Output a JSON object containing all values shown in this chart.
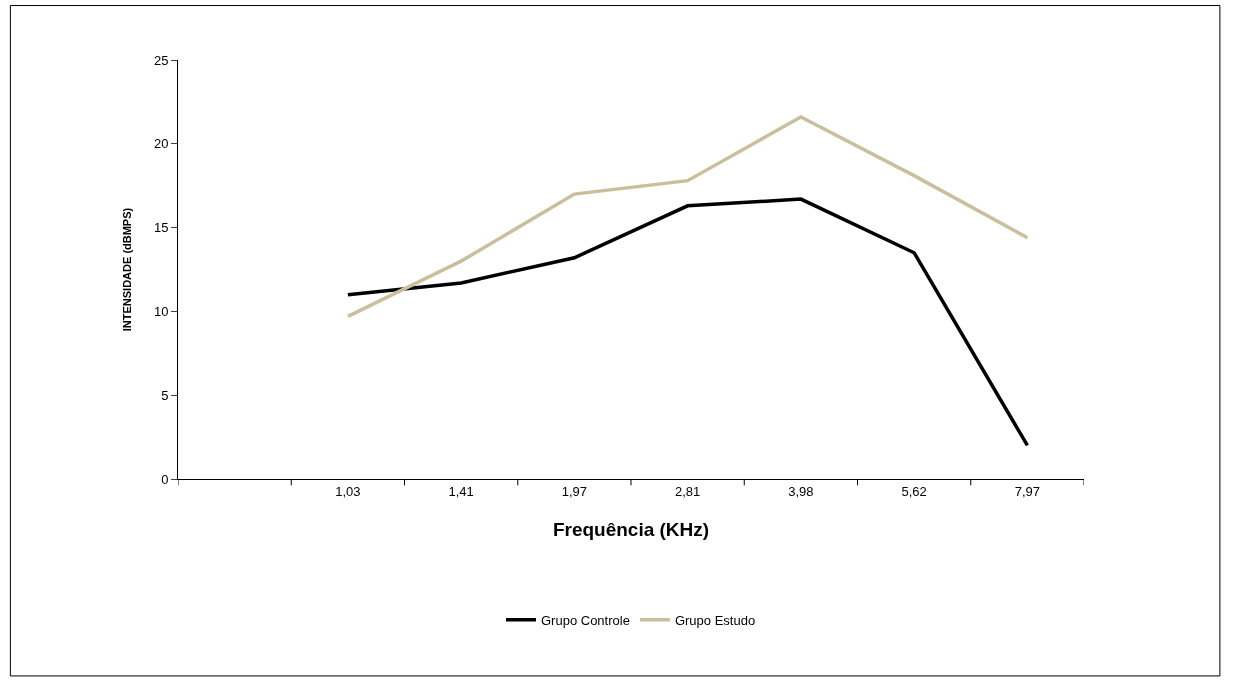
{
  "chart_data": {
    "type": "line",
    "xlabel": "Frequência (KHz)",
    "ylabel": "INTENSIDADE (dBMPS)",
    "categories": [
      null,
      "1,03",
      "1,41",
      "1,97",
      "2,81",
      "3,98",
      "5,62",
      "7,97"
    ],
    "series": [
      {
        "name": "Grupo Controle",
        "color": "#000000",
        "values": [
          null,
          11.0,
          11.7,
          13.2,
          16.3,
          16.7,
          13.5,
          2.0
        ]
      },
      {
        "name": "Grupo Estudo",
        "color": "#c9c09b",
        "values": [
          null,
          9.7,
          13.0,
          17.0,
          17.8,
          21.6,
          18.1,
          14.4
        ]
      }
    ],
    "ylim": [
      0,
      25
    ],
    "yticks": [
      0,
      5,
      10,
      15,
      20,
      25
    ],
    "legend": "bottom",
    "marker": "none",
    "line_style": "solid"
  }
}
